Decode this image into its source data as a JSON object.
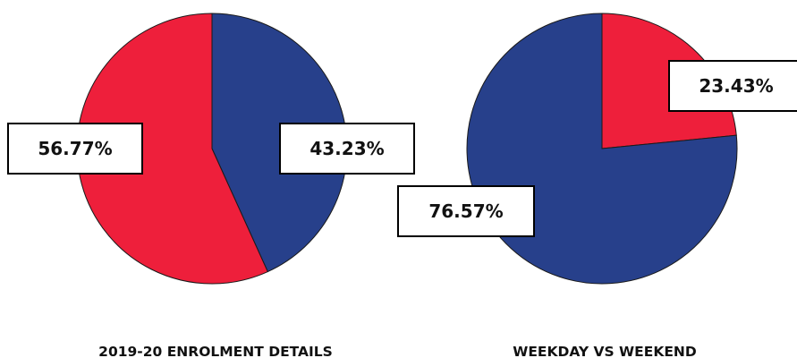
{
  "chart_data": [
    {
      "type": "pie",
      "title": "2019-20 ENROLMENT DETAILS",
      "slices": [
        {
          "value": 43.23,
          "label": "43.23%",
          "color": "#27408b"
        },
        {
          "value": 56.77,
          "label": "56.77%",
          "color": "#ee1f3b"
        }
      ]
    },
    {
      "type": "pie",
      "title": "WEEKDAY VS WEEKEND",
      "slices": [
        {
          "value": 23.43,
          "label": "23.43%",
          "color": "#ee1f3b"
        },
        {
          "value": 76.57,
          "label": "76.57%",
          "color": "#27408b"
        }
      ]
    }
  ]
}
